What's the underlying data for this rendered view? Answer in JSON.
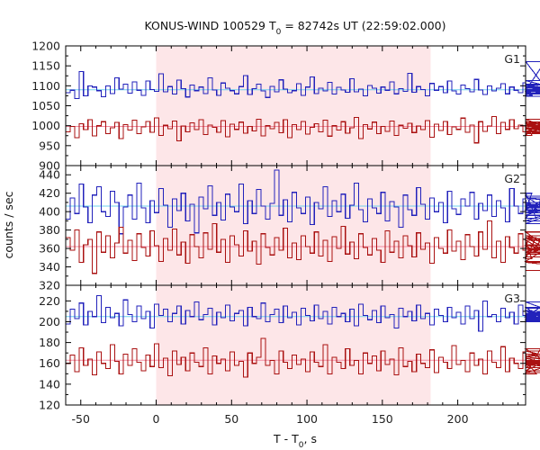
{
  "chart_data": {
    "type": "line",
    "title_main": "KONUS-WIND 100529 T",
    "title_sub": "0",
    "title_rest": " = 82742s UT (22:59:02.000)",
    "xlabel_main": "T - T",
    "xlabel_sub": "0",
    "xlabel_rest": ", s",
    "ylabel": "counts / sec",
    "xlim": [
      -60,
      245
    ],
    "x_ticks": [
      -50,
      0,
      50,
      100,
      150,
      200
    ],
    "x_tick_labels": [
      "-50",
      "0",
      "50",
      "100",
      "150",
      "200"
    ],
    "shaded_interval": [
      0,
      182
    ],
    "colors": {
      "shade": "#fde6e8",
      "upper_series": "#2222bb",
      "lower_series": "#aa1111",
      "upper_bg": "#6fd0ee",
      "lower_bg": "#f28aa0"
    },
    "bin_width_s": 2.944,
    "panels": [
      {
        "label": "G1",
        "ylim": [
          900,
          1200
        ],
        "yticks": [
          900,
          950,
          1000,
          1050,
          1100,
          1150,
          1200
        ],
        "series": [
          {
            "color_role": "upper",
            "background": 1090,
            "values": [
              1083,
              1089,
              1068,
              1136,
              1075,
              1100,
              1097,
              1088,
              1073,
              1100,
              1081,
              1120,
              1092,
              1104,
              1082,
              1110,
              1089,
              1076,
              1112,
              1091,
              1086,
              1130,
              1085,
              1098,
              1079,
              1114,
              1093,
              1072,
              1102,
              1088,
              1097,
              1081,
              1120,
              1090,
              1076,
              1107,
              1094,
              1088,
              1080,
              1098,
              1126,
              1078,
              1093,
              1104,
              1087,
              1071,
              1099,
              1085,
              1115,
              1092,
              1083,
              1088,
              1105,
              1076,
              1097,
              1122,
              1081,
              1094,
              1087,
              1109,
              1079,
              1096,
              1090,
              1084,
              1118,
              1085,
              1092,
              1075,
              1101,
              1094,
              1082,
              1097,
              1089,
              1110,
              1080,
              1093,
              1086,
              1131,
              1084,
              1098,
              1091,
              1075,
              1106,
              1089,
              1098,
              1083,
              1112,
              1087,
              1079,
              1102,
              1093,
              1085,
              1116,
              1090,
              1078,
              1100,
              1087,
              1094,
              1105,
              1080,
              1097,
              1089,
              1083,
              1108,
              1092,
              1076,
              1099,
              1088,
              1161,
              1082,
              1095,
              1090,
              1074,
              1102,
              1086,
              1113,
              1079,
              1097,
              1091,
              1085,
              1104
            ]
          },
          {
            "color_role": "lower",
            "background": 998,
            "values": [
              985,
              998,
              970,
              1005,
              990,
              1015,
              975,
              1000,
              1010,
              980,
              995,
              1008,
              968,
              1003,
              989,
              1014,
              980,
              997,
              1011,
              984,
              1020,
              976,
              1001,
              993,
              1012,
              962,
              999,
              985,
              1007,
              990,
              1015,
              978,
              1002,
              996,
              984,
              1013,
              972,
              1004,
              991,
              1009,
              981,
              998,
              987,
              1016,
              975,
              1000,
              993,
              1008,
              982,
              1015,
              970,
              1003,
              990,
              1011,
              979,
              996,
              1005,
              985,
              1014,
              974,
              1000,
              989,
              1010,
              981,
              995,
              1021,
              968,
              1003,
              992,
              1009,
              980,
              998,
              986,
              1012,
              976,
              1001,
              994,
              1006,
              983,
              999,
              990,
              1013,
              971,
              1004,
              988,
              1011,
              978,
              997,
              991,
              1019,
              984,
              1002,
              957,
              1010,
              986,
              999,
              1023,
              980,
              1008,
              991,
              1015,
              993,
              1002,
              985,
              1011,
              976,
              1000,
              994,
              985,
              1009,
              999,
              1016,
              981,
              1005,
              980,
              993,
              1000,
              985,
              1002,
              992,
              995
            ]
          }
        ]
      },
      {
        "label": "G2",
        "ylim": [
          320,
          450
        ],
        "yticks": [
          320,
          340,
          360,
          380,
          400,
          420,
          440
        ],
        "series": [
          {
            "color_role": "upper",
            "background": 406,
            "values": [
              392,
              415,
              398,
              430,
              405,
              388,
              418,
              427,
              400,
              395,
              422,
              410,
              376,
              405,
              418,
              392,
              431,
              404,
              388,
              412,
              399,
              425,
              407,
              383,
              414,
              401,
              420,
              390,
              408,
              377,
              416,
              403,
              428,
              396,
              410,
              391,
              419,
              405,
              400,
              430,
              387,
              412,
              398,
              424,
              406,
              392,
              409,
              445,
              396,
              413,
              389,
              421,
              404,
              398,
              416,
              386,
              410,
              403,
              427,
              395,
              412,
              400,
              419,
              393,
              407,
              431,
              402,
              389,
              414,
              404,
              398,
              421,
              390,
              411,
              405,
              383,
              418,
              402,
              396,
              426,
              408,
              392,
              415,
              400,
              410,
              388,
              422,
              403,
              397,
              414,
              406,
              421,
              392,
              409,
              401,
              418,
              395,
              412,
              404,
              389,
              425,
              406,
              398,
              414,
              401,
              420,
              393,
              410,
              402,
              417,
              396,
              408,
              390,
              404,
              407,
              401,
              399,
              410,
              387,
              415,
              405
            ]
          },
          {
            "color_role": "lower",
            "background": 362,
            "values": [
              372,
              358,
              380,
              345,
              364,
              370,
              333,
              378,
              356,
              374,
              350,
              366,
              383,
              355,
              369,
              347,
              376,
              361,
              352,
              379,
              363,
              346,
              371,
              358,
              381,
              353,
              367,
              344,
              375,
              362,
              350,
              377,
              359,
              387,
              356,
              370,
              345,
              374,
              364,
              352,
              379,
              357,
              368,
              343,
              376,
              361,
              353,
              372,
              358,
              382,
              350,
              366,
              348,
              374,
              362,
              355,
              378,
              352,
              369,
              346,
              373,
              360,
              384,
              354,
              367,
              349,
              376,
              361,
              353,
              371,
              358,
              345,
              379,
              356,
              368,
              350,
              374,
              363,
              351,
              377,
              359,
              366,
              344,
              372,
              360,
              355,
              380,
              357,
              368,
              348,
              375,
              362,
              352,
              378,
              359,
              390,
              350,
              368,
              345,
              373,
              361,
              355,
              376,
              358,
              367,
              349,
              372,
              363,
              351,
              378,
              356,
              369,
              346,
              374,
              360,
              354,
              371,
              358,
              364,
              345,
              336
            ]
          }
        ]
      },
      {
        "label": "G3",
        "ylim": [
          120,
          235
        ],
        "yticks": [
          120,
          140,
          160,
          180,
          200,
          220
        ],
        "series": [
          {
            "color_role": "upper",
            "background": 205,
            "values": [
              198,
              212,
              203,
              218,
              197,
              210,
              205,
              225,
              199,
              214,
              204,
              208,
              196,
              221,
              207,
              200,
              215,
              203,
              210,
              194,
              217,
              206,
              212,
              200,
              208,
              215,
              198,
              211,
              205,
              219,
              202,
              207,
              213,
              197,
              209,
              204,
              216,
              201,
              208,
              211,
              196,
              214,
              205,
              203,
              218,
              200,
              207,
              212,
              199,
              215,
              204,
              209,
              197,
              213,
              206,
              201,
              216,
              203,
              210,
              198,
              214,
              205,
              208,
              200,
              212,
              196,
              217,
              206,
              202,
              211,
              199,
              215,
              204,
              207,
              194,
              213,
              205,
              210,
              201,
              216,
              203,
              208,
              197,
              212,
              206,
              200,
              214,
              204,
              209,
              198,
              215,
              203,
              211,
              191,
              220,
              205,
              207,
              200,
              213,
              204,
              209,
              198,
              216,
              206,
              202,
              211,
              205,
              214,
              201,
              208,
              203,
              219,
              206,
              210,
              204,
              200,
              207,
              202,
              214,
              208,
              213
            ]
          },
          {
            "color_role": "lower",
            "background": 163,
            "values": [
              160,
              168,
              152,
              175,
              158,
              164,
              149,
              171,
              160,
              155,
              178,
              162,
              150,
              169,
              158,
              174,
              161,
              153,
              168,
              157,
              179,
              156,
              165,
              148,
              172,
              159,
              166,
              153,
              170,
              161,
              157,
              175,
              150,
              167,
              160,
              164,
              153,
              171,
              158,
              162,
              147,
              170,
              160,
              166,
              184,
              158,
              163,
              150,
              172,
              161,
              155,
              168,
              159,
              164,
              152,
              171,
              161,
              157,
              178,
              150,
              166,
              161,
              155,
              174,
              158,
              163,
              150,
              170,
              160,
              167,
              153,
              172,
              159,
              164,
              149,
              175,
              157,
              162,
              152,
              169,
              160,
              156,
              173,
              151,
              166,
              161,
              155,
              177,
              159,
              163,
              152,
              170,
              158,
              164,
              150,
              172,
              161,
              156,
              176,
              152,
              165,
              160,
              155,
              171,
              158,
              163,
              150,
              174,
              162,
              156,
              167,
              160,
              153,
              172,
              161,
              158,
              165,
              151,
              169,
              160,
              163
            ]
          }
        ]
      }
    ]
  }
}
